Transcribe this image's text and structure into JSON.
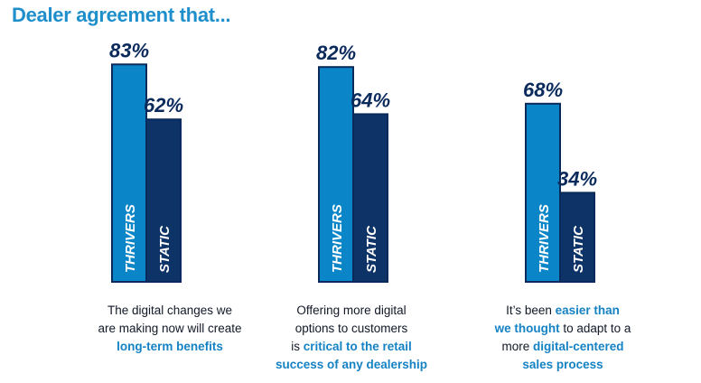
{
  "title": "Dealer agreement that...",
  "colors": {
    "title": "#1f8fcc",
    "thrivers": "#0a85c7",
    "static": "#0e3366",
    "outline": "#0b2a5c",
    "value_text": "#0b2a5c",
    "highlight": "#1582c4"
  },
  "chart_data": {
    "type": "bar",
    "value_format": "percent",
    "ylim": [
      0,
      100
    ],
    "categories": [
      "The digital changes we are making now will create long-term benefits",
      "Offering more digital options to customers is critical to the retail success of any dealership",
      "It's been easier than we thought to adapt to a more digital-centered sales process"
    ],
    "series": [
      {
        "name": "THRIVERS",
        "values": [
          83,
          82,
          68
        ]
      },
      {
        "name": "STATIC",
        "values": [
          62,
          64,
          34
        ]
      }
    ],
    "value_labels": [
      [
        "83%",
        "62%"
      ],
      [
        "82%",
        "64%"
      ],
      [
        "68%",
        "34%"
      ]
    ]
  },
  "captions": [
    [
      {
        "text": "The digital changes we",
        "bold": false
      },
      {
        "text": "\n",
        "bold": false
      },
      {
        "text": "are making now will create",
        "bold": false
      },
      {
        "text": "\n",
        "bold": false
      },
      {
        "text": "long-term benefits",
        "bold": true
      }
    ],
    [
      {
        "text": "Offering more digital",
        "bold": false
      },
      {
        "text": "\n",
        "bold": false
      },
      {
        "text": "options to customers",
        "bold": false
      },
      {
        "text": "\n",
        "bold": false
      },
      {
        "text": "is ",
        "bold": false
      },
      {
        "text": "critical to the retail",
        "bold": true
      },
      {
        "text": "\n",
        "bold": false
      },
      {
        "text": "success of any dealership",
        "bold": true
      }
    ],
    [
      {
        "text": "It’s been ",
        "bold": false
      },
      {
        "text": "easier than",
        "bold": true
      },
      {
        "text": "\n",
        "bold": false
      },
      {
        "text": "we thought",
        "bold": true
      },
      {
        "text": " to adapt to a",
        "bold": false
      },
      {
        "text": "\n",
        "bold": false
      },
      {
        "text": "more ",
        "bold": false
      },
      {
        "text": "digital-centered",
        "bold": true
      },
      {
        "text": "\n",
        "bold": false
      },
      {
        "text": "sales process",
        "bold": true
      }
    ]
  ]
}
